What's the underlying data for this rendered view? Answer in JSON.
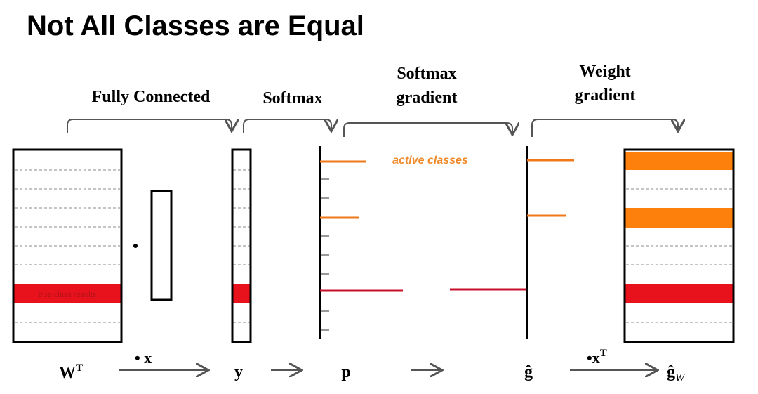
{
  "title": "Not All Classes are Equal",
  "stages": [
    {
      "lines": [
        "Fully Connected"
      ]
    },
    {
      "lines": [
        "Softmax"
      ]
    },
    {
      "lines": [
        "Softmax",
        "gradient"
      ]
    },
    {
      "lines": [
        "Weight",
        "gradient"
      ]
    }
  ],
  "band_label": "true class results",
  "annotation": "active classes",
  "symbols": {
    "w": {
      "base": "W",
      "sup": "T"
    },
    "dot_x": "• x",
    "y": "y",
    "p": "p",
    "g": "ĝ",
    "dot_xt": {
      "base": "•x",
      "sup": "T"
    },
    "gw": {
      "base": "ĝ",
      "sub": "W"
    }
  }
}
